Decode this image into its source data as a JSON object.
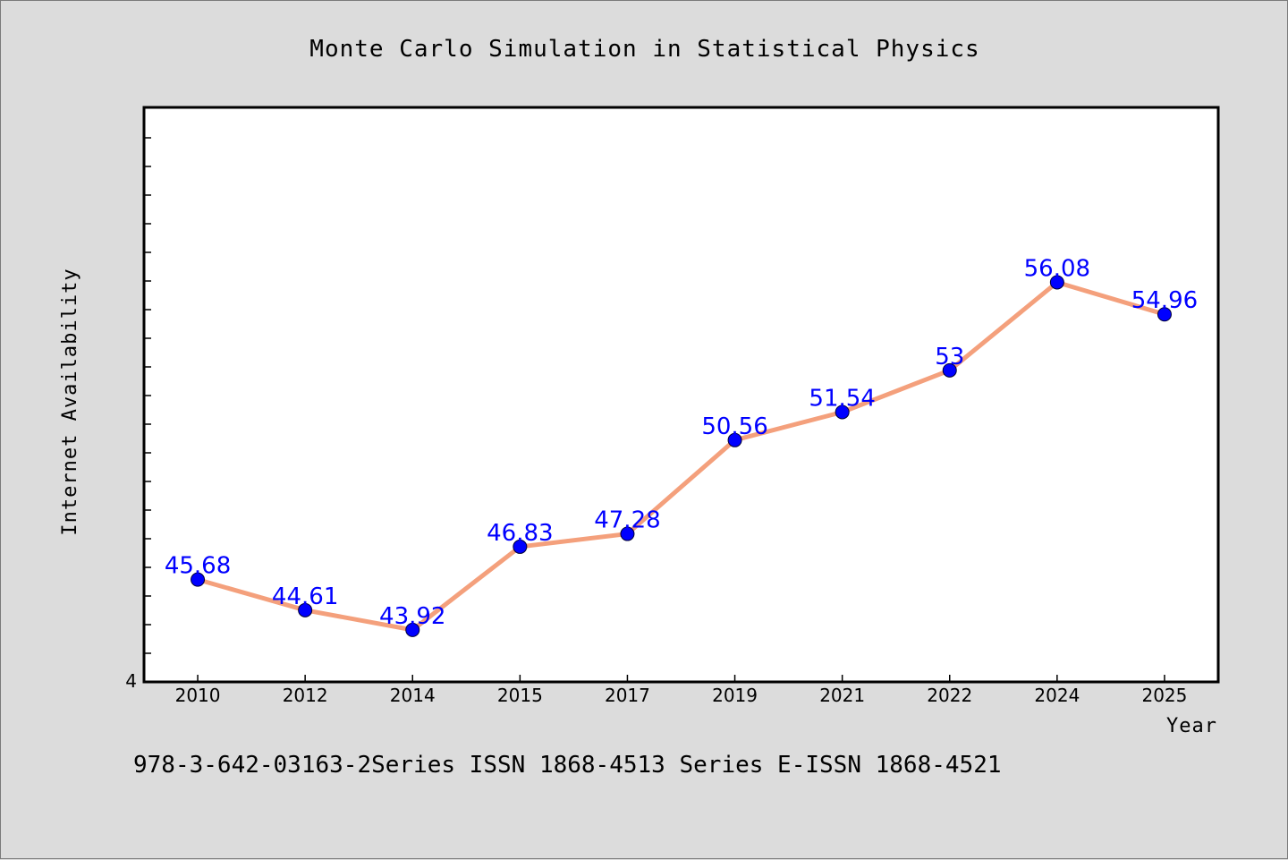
{
  "chart_data": {
    "type": "line",
    "title": "Monte Carlo Simulation in Statistical Physics",
    "xlabel": "Year",
    "ylabel": "Internet Availability",
    "categories": [
      "2010",
      "2012",
      "2014",
      "2015",
      "2017",
      "2019",
      "2021",
      "2022",
      "2024",
      "2025"
    ],
    "series": [
      {
        "values": [
          45.68,
          44.61,
          43.92,
          46.83,
          47.28,
          50.56,
          51.54,
          53,
          56.08,
          54.96
        ],
        "labels": [
          "45.68",
          "44.61",
          "43.92",
          "46.83",
          "47.28",
          "50.56",
          "51.54",
          "53",
          "56.08",
          "54.96"
        ],
        "line_color": "#f4a07c",
        "marker_color": "#0000ff"
      }
    ],
    "y_tick_labels": [
      "4"
    ],
    "ylim": [
      42.1,
      62.2
    ],
    "grid": false,
    "legend": "none"
  },
  "footer": {
    "text": "978-3-642-03163-2Series ISSN 1868-4513 Series E-ISSN 1868-4521"
  },
  "colors": {
    "background": "#dcdcdc",
    "plot_background": "#ffffff",
    "line": "#f4a07c",
    "marker": "#0000ff",
    "data_label": "#0000ff"
  }
}
